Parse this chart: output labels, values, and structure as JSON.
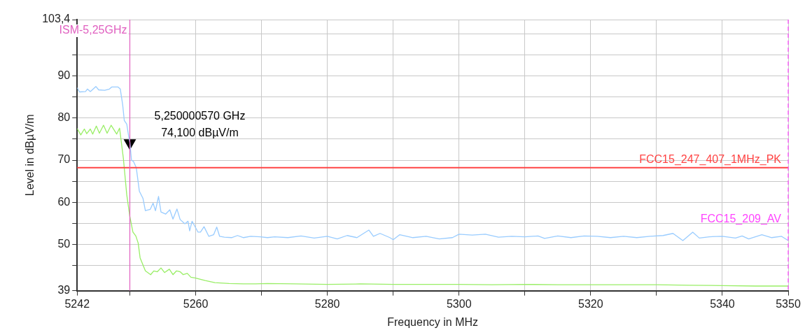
{
  "chart_data": {
    "type": "line",
    "xlabel": "Frequency in MHz",
    "ylabel": "Level in dBµV/m",
    "xlim": [
      5242,
      5350
    ],
    "ylim": [
      39,
      103.4
    ],
    "xticks": [
      5242,
      {
        "value": 5250,
        "label": null
      },
      5260,
      {
        "value": 5270,
        "label": null
      },
      5280,
      {
        "value": 5290,
        "label": null
      },
      5300,
      {
        "value": 5310,
        "label": null
      },
      5320,
      {
        "value": 5330,
        "label": null
      },
      5340,
      5350
    ],
    "yticks": [
      39,
      {
        "value": 45,
        "label": null
      },
      50,
      {
        "value": 55,
        "label": null
      },
      60,
      {
        "value": 65,
        "label": null
      },
      70,
      {
        "value": 75,
        "label": null
      },
      80,
      {
        "value": 85,
        "label": null
      },
      90,
      {
        "value": 95,
        "label": null
      },
      {
        "value": 100,
        "label": null
      },
      {
        "value": 103.4,
        "label": "103,4"
      }
    ],
    "grid": true,
    "legend": false,
    "marker": "none",
    "line_style": "solid",
    "series": [
      {
        "color": "#99ccff",
        "x": [
          5242,
          5242.36,
          5243.27,
          5243.56,
          5244,
          5244.84,
          5245.27,
          5246.18,
          5246.9,
          5247.27,
          5248.18,
          5248.55,
          5248.91,
          5249.16,
          5249.53,
          5249.82,
          5250,
          5250.25,
          5250.55,
          5250.98,
          5251.45,
          5252,
          5252.36,
          5253.09,
          5253.53,
          5253.89,
          5254.36,
          5254.73,
          5255.45,
          5256.07,
          5256.55,
          5257.16,
          5257.64,
          5258.36,
          5258.84,
          5259.09,
          5259.45,
          5260.36,
          5260.73,
          5261.27,
          5262,
          5262.73,
          5263.2,
          5263.64,
          5264.36,
          5265.45,
          5266.36,
          5267.27,
          5268.36,
          5269.82,
          5270.9,
          5272,
          5274,
          5276,
          5278,
          5280,
          5281.5,
          5283,
          5284.5,
          5286.3,
          5287,
          5288,
          5289.5,
          5290,
          5291,
          5293,
          5295,
          5297,
          5299,
          5300,
          5302,
          5304,
          5306,
          5308,
          5310,
          5312,
          5313,
          5315,
          5317,
          5319,
          5321,
          5323,
          5325,
          5327,
          5329,
          5331,
          5332.5,
          5334,
          5335.5,
          5336.5,
          5338,
          5340,
          5342,
          5343,
          5344,
          5346,
          5347.5,
          5349,
          5350
        ],
        "values": [
          87.2,
          86.2,
          86.3,
          86.9,
          86.3,
          87.5,
          86.7,
          86.6,
          86.9,
          87.4,
          87.4,
          86.9,
          83.2,
          79.4,
          78.6,
          75.7,
          74.3,
          70,
          69.7,
          68.2,
          62.6,
          60.9,
          58,
          58.3,
          59.8,
          58,
          61.4,
          57.7,
          57.2,
          58.2,
          56,
          58.4,
          55.9,
          54.9,
          55.5,
          53.2,
          55.5,
          52.9,
          52.9,
          54.2,
          51.9,
          52.3,
          54.1,
          51.9,
          51.7,
          51.6,
          52.1,
          51.6,
          51.9,
          51.8,
          51.6,
          51.8,
          51.6,
          52.0,
          51.5,
          51.9,
          51.3,
          52.1,
          51.6,
          53.4,
          51.9,
          52.6,
          51.6,
          51.1,
          52.3,
          51.6,
          51.9,
          51.3,
          51.6,
          52.4,
          52.2,
          52.4,
          51.7,
          51.9,
          51.8,
          52.0,
          51.4,
          52.0,
          51.6,
          52.0,
          51.9,
          51.6,
          51.9,
          51.6,
          51.9,
          52.1,
          52.6,
          50.9,
          52.9,
          51.5,
          51.8,
          51.9,
          51.5,
          52.0,
          51.3,
          52.3,
          51.6,
          51.9,
          50.9
        ]
      },
      {
        "color": "#99ee66",
        "x": [
          5242,
          5242.55,
          5243.09,
          5243.45,
          5244,
          5244.36,
          5244.91,
          5245.38,
          5246,
          5246.55,
          5247.16,
          5248,
          5248.44,
          5249.02,
          5249.53,
          5250,
          5250.47,
          5250.91,
          5251.27,
          5251.56,
          5252.36,
          5253.16,
          5253.64,
          5254.18,
          5254.73,
          5255.27,
          5256,
          5256.55,
          5257.09,
          5257.64,
          5258.11,
          5258.73,
          5259.27,
          5260,
          5261.45,
          5262.91,
          5265.09,
          5267.27,
          5269.09,
          5270.91,
          5275,
          5280,
          5285,
          5290,
          5295,
          5300,
          5305,
          5310,
          5315,
          5320,
          5325,
          5330,
          5335,
          5340,
          5345,
          5350
        ],
        "values": [
          77.5,
          76,
          77.4,
          76.3,
          77.4,
          76.2,
          78.1,
          76.4,
          78.3,
          76.4,
          78.3,
          76.2,
          77.6,
          70.4,
          61.8,
          56.6,
          52.9,
          52,
          50.3,
          46.8,
          43.7,
          42.8,
          43.7,
          43.5,
          44.4,
          43.3,
          44.1,
          42.8,
          43.7,
          43.5,
          42.8,
          43.1,
          42.2,
          42,
          41.4,
          40.9,
          40.7,
          40.6,
          40.6,
          40.7,
          40.6,
          40.5,
          40.6,
          40.5,
          40.5,
          40.5,
          40.4,
          40.5,
          40.4,
          40.4,
          40.4,
          40.4,
          40.3,
          40.2,
          40.1,
          40.1
        ]
      },
      {
        "type": "scatter",
        "marker": "triangle",
        "color": "#000000",
        "x": [
          5250.00057
        ],
        "values": [
          74.1
        ],
        "value_labels": [
          "5,250000570 GHz\n74,100 dBµV/m"
        ]
      }
    ],
    "ref_lines": [
      {
        "axis": "y",
        "value": 68.2,
        "label": "FCC15_247_407_1MHz_PK",
        "color": "#ff4444",
        "line_style": "solid"
      },
      {
        "axis": "x",
        "value": 5250,
        "label": "ISM-5,25GHz",
        "color": "#e060c0",
        "line_style": "solid"
      },
      {
        "axis": "x",
        "value": 5350,
        "color": "#ff44ff",
        "line_style": "dashed"
      }
    ],
    "annotations": [
      {
        "text": "FCC15_209_AV",
        "x": 5350,
        "y": 54
      }
    ]
  }
}
